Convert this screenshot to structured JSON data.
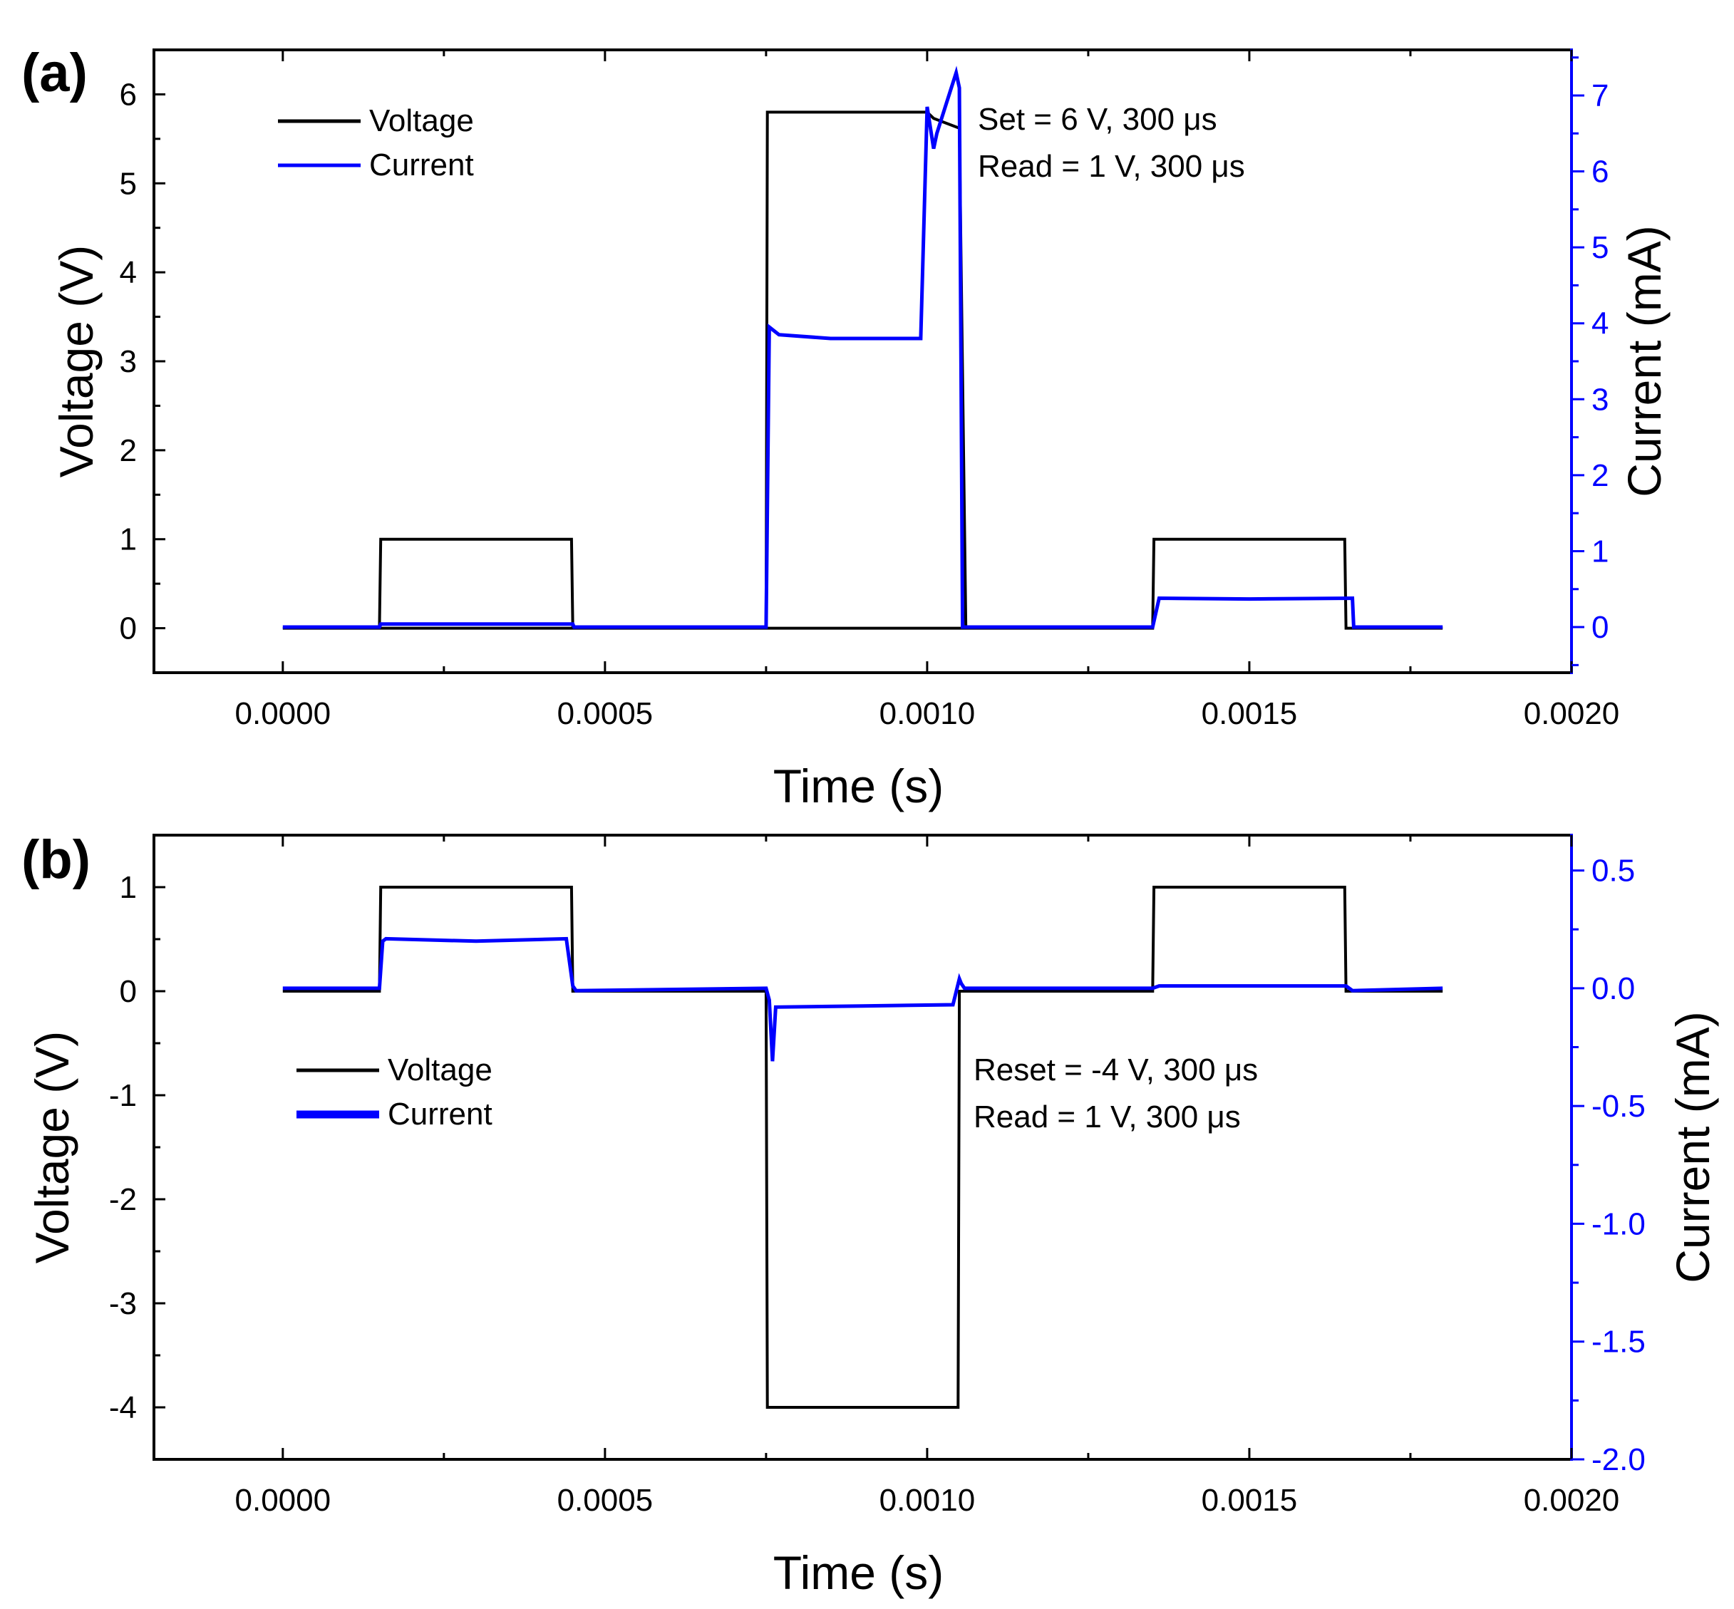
{
  "chart_data": [
    {
      "type": "line",
      "panel_label": "(a)",
      "xlabel": "Time (s)",
      "ylabel": "Voltage (V)",
      "y2label": "Current (mA)",
      "xlim": [
        -0.0002,
        0.002
      ],
      "ylim": [
        -0.5,
        6.5
      ],
      "y2lim": [
        -0.6,
        7.6
      ],
      "xticks": [
        0.0,
        0.0005,
        0.001,
        0.0015,
        0.002
      ],
      "xtick_labels": [
        "0.0000",
        "0.0005",
        "0.0010",
        "0.0015",
        "0.0020"
      ],
      "yticks": [
        0,
        1,
        2,
        3,
        4,
        5,
        6
      ],
      "ytick_labels": [
        "0",
        "1",
        "2",
        "3",
        "4",
        "5",
        "6"
      ],
      "y2ticks": [
        0,
        1,
        2,
        3,
        4,
        5,
        6,
        7
      ],
      "y2tick_labels": [
        "0",
        "1",
        "2",
        "3",
        "4",
        "5",
        "6",
        "7"
      ],
      "legend": {
        "position": "top-left",
        "entries": [
          "Voltage",
          "Current"
        ]
      },
      "annotations": [
        "Set = 6 V, 300 μs",
        "Read = 1 V, 300 μs"
      ],
      "grid": false,
      "series": [
        {
          "name": "Voltage",
          "axis": "left",
          "color": "#000000",
          "x": [
            0,
            0.00015,
            0.000152,
            0.000448,
            0.00045,
            0.00075,
            0.000752,
            0.001,
            0.00101,
            0.00105,
            0.00106,
            0.00135,
            0.000135,
            0.00135,
            0.001352,
            0.001648,
            0.00165,
            0.0018
          ],
          "y": [
            0,
            0,
            1.0,
            1.0,
            0,
            0,
            5.8,
            5.8,
            5.73,
            5.62,
            0,
            0,
            0,
            0,
            1.0,
            1.0,
            0,
            0
          ]
        },
        {
          "name": "Current",
          "axis": "right",
          "color": "#0000ff",
          "x": [
            0,
            0.00015,
            0.000152,
            0.00045,
            0.000452,
            0.00075,
            0.000755,
            0.00077,
            0.00085,
            0.00099,
            0.001,
            0.00101,
            0.001015,
            0.00103,
            0.001045,
            0.00105,
            0.001055,
            0.00106,
            0.00135,
            0.00136,
            0.0015,
            0.00166,
            0.001662,
            0.0018
          ],
          "y": [
            0,
            0,
            0.04,
            0.04,
            0,
            0,
            3.95,
            3.85,
            3.8,
            3.8,
            6.85,
            6.3,
            6.5,
            6.9,
            7.3,
            7.1,
            0,
            0,
            0,
            0.38,
            0.37,
            0.38,
            0,
            0
          ]
        }
      ]
    },
    {
      "type": "line",
      "panel_label": "(b)",
      "xlabel": "Time (s)",
      "ylabel": "Voltage (V)",
      "y2label": "Current (mA)",
      "xlim": [
        -0.0002,
        0.002
      ],
      "ylim": [
        -4.5,
        1.5
      ],
      "y2lim": [
        -2.0,
        0.65
      ],
      "xticks": [
        0.0,
        0.0005,
        0.001,
        0.0015,
        0.002
      ],
      "xtick_labels": [
        "0.0000",
        "0.0005",
        "0.0010",
        "0.0015",
        "0.0020"
      ],
      "yticks": [
        1,
        0,
        -1,
        -2,
        -3,
        -4
      ],
      "ytick_labels": [
        "1",
        "0",
        "-1",
        "-2",
        "-3",
        "-4"
      ],
      "y2ticks": [
        0.5,
        0.0,
        -0.5,
        -1.0,
        -1.5,
        -2.0
      ],
      "y2tick_labels": [
        "0.5",
        "0.0",
        "-0.5",
        "-1.0",
        "-1.5",
        "-2.0"
      ],
      "legend": {
        "position": "middle-left",
        "entries": [
          "Voltage",
          "Current"
        ]
      },
      "annotations": [
        "Reset = -4 V, 300 μs",
        "Read = 1 V, 300 μs"
      ],
      "grid": false,
      "series": [
        {
          "name": "Voltage",
          "axis": "left",
          "color": "#000000",
          "x": [
            0,
            0.00015,
            0.000152,
            0.000448,
            0.00045,
            0.00075,
            0.000752,
            0.001048,
            0.00105,
            0.00135,
            0.001352,
            0.001648,
            0.00165,
            0.0018
          ],
          "y": [
            0,
            0,
            1.0,
            1.0,
            0,
            0,
            -4.0,
            -4.0,
            0,
            0,
            1.0,
            1.0,
            0,
            0
          ]
        },
        {
          "name": "Current",
          "axis": "right",
          "color": "#0000ff",
          "x": [
            0,
            0.00015,
            0.000155,
            0.00016,
            0.0003,
            0.00044,
            0.00045,
            0.000455,
            0.00075,
            0.000755,
            0.00076,
            0.000765,
            0.0009,
            0.00104,
            0.00105,
            0.001053,
            0.001058,
            0.00135,
            0.00136,
            0.00165,
            0.00166,
            0.0018
          ],
          "y": [
            0,
            0,
            0.2,
            0.21,
            0.2,
            0.21,
            0.01,
            -0.01,
            0,
            -0.05,
            -0.31,
            -0.08,
            -0.075,
            -0.07,
            0.04,
            0.02,
            0.0,
            0.0,
            0.01,
            0.01,
            -0.01,
            0
          ]
        }
      ]
    }
  ]
}
